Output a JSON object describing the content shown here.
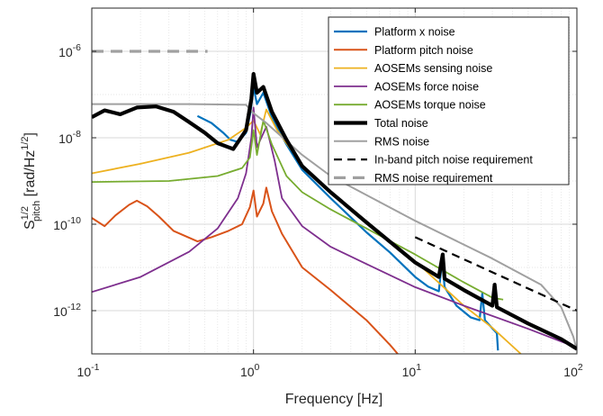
{
  "chart_data": {
    "type": "line",
    "x_scale": "log",
    "y_scale": "log",
    "xlim": [
      0.1,
      100
    ],
    "ylim": [
      1e-13,
      1e-05
    ],
    "grid": true,
    "minor_grid": true,
    "legend_position": "top-right",
    "xlabel": "Frequency [Hz]",
    "ylabel": {
      "base": "S",
      "sup": "1/2",
      "sub": "pitch",
      "unit_open": " [rad/Hz",
      "unit_sup": "1/2",
      "unit_close": "]"
    },
    "x_ticks": [
      {
        "value": 0.1,
        "mant": "10",
        "exp": "-1"
      },
      {
        "value": 1,
        "mant": "10",
        "exp": "0"
      },
      {
        "value": 10,
        "mant": "10",
        "exp": "1"
      },
      {
        "value": 100,
        "mant": "10",
        "exp": "2"
      }
    ],
    "y_ticks": [
      {
        "value": 1e-12,
        "mant": "10",
        "exp": "-12"
      },
      {
        "value": 1e-10,
        "mant": "10",
        "exp": "-10"
      },
      {
        "value": 1e-08,
        "mant": "10",
        "exp": "-8"
      },
      {
        "value": 1e-06,
        "mant": "10",
        "exp": "-6"
      }
    ],
    "series": [
      {
        "name": "Platform x noise",
        "color": "#0072BD",
        "width": 2.2,
        "dash": "",
        "points": [
          [
            0.45,
            3.2e-08
          ],
          [
            0.55,
            2.2e-08
          ],
          [
            0.65,
            1.3e-08
          ],
          [
            0.72,
            9e-09
          ],
          [
            0.8,
            8e-09
          ],
          [
            0.9,
            1.3e-08
          ],
          [
            0.96,
            4e-08
          ],
          [
            1.0,
            1.5e-07
          ],
          [
            1.05,
            6e-08
          ],
          [
            1.15,
            1.1e-07
          ],
          [
            1.3,
            3e-08
          ],
          [
            1.6,
            7e-09
          ],
          [
            2.0,
            1.8e-09
          ],
          [
            3.0,
            4e-10
          ],
          [
            5.0,
            6.5e-11
          ],
          [
            7.0,
            2.2e-11
          ],
          [
            10,
            6e-12
          ],
          [
            12,
            3.6e-12
          ],
          [
            14,
            2.8e-12
          ],
          [
            14.7,
            1.5e-11
          ],
          [
            15.2,
            3.5e-12
          ],
          [
            18,
            1.3e-12
          ],
          [
            22,
            7e-13
          ],
          [
            25,
            6e-13
          ],
          [
            26,
            2.5e-12
          ],
          [
            27,
            6e-13
          ],
          [
            32,
            3e-13
          ],
          [
            32.5,
            1.2e-13
          ]
        ]
      },
      {
        "name": "Platform pitch noise",
        "color": "#D95319",
        "width": 2.0,
        "dash": "",
        "points": [
          [
            0.1,
            1.4e-10
          ],
          [
            0.12,
            9e-11
          ],
          [
            0.14,
            1.6e-10
          ],
          [
            0.17,
            2.8e-10
          ],
          [
            0.19,
            3.5e-10
          ],
          [
            0.22,
            2.6e-10
          ],
          [
            0.26,
            1.5e-10
          ],
          [
            0.32,
            7e-11
          ],
          [
            0.45,
            4e-11
          ],
          [
            0.55,
            5e-11
          ],
          [
            0.7,
            7e-11
          ],
          [
            0.85,
            1e-10
          ],
          [
            0.95,
            2.5e-10
          ],
          [
            1.0,
            6e-10
          ],
          [
            1.05,
            1.5e-10
          ],
          [
            1.15,
            3e-10
          ],
          [
            1.2,
            7e-10
          ],
          [
            1.3,
            2e-10
          ],
          [
            1.5,
            6e-11
          ],
          [
            2.0,
            1e-11
          ],
          [
            3.0,
            3e-12
          ],
          [
            5.0,
            6e-13
          ],
          [
            7.0,
            1.6e-13
          ],
          [
            7.8,
            1e-13
          ]
        ]
      },
      {
        "name": "AOSEMs sensing noise",
        "color": "#EDB120",
        "width": 1.8,
        "dash": "",
        "points": [
          [
            0.1,
            1.5e-09
          ],
          [
            0.2,
            2.5e-09
          ],
          [
            0.4,
            4.5e-09
          ],
          [
            0.7,
            9e-09
          ],
          [
            0.9,
            1.7e-08
          ],
          [
            1.0,
            2.5e-08
          ],
          [
            1.1,
            1.2e-08
          ],
          [
            1.2,
            4.5e-08
          ],
          [
            1.4,
            1.5e-08
          ],
          [
            2.0,
            2.3e-09
          ],
          [
            3.0,
            5.5e-10
          ],
          [
            5.0,
            1.1e-10
          ],
          [
            10,
            1.4e-11
          ],
          [
            20,
            1.3e-12
          ],
          [
            30,
            4e-13
          ],
          [
            45,
            1e-13
          ]
        ]
      },
      {
        "name": "AOSEMs force noise",
        "color": "#7E2F8E",
        "width": 1.8,
        "dash": "",
        "points": [
          [
            0.1,
            2.7e-12
          ],
          [
            0.2,
            6e-12
          ],
          [
            0.4,
            2.3e-11
          ],
          [
            0.6,
            8e-11
          ],
          [
            0.8,
            4e-10
          ],
          [
            0.9,
            1.5e-09
          ],
          [
            0.97,
            1e-08
          ],
          [
            1.0,
            5e-08
          ],
          [
            1.05,
            6e-09
          ],
          [
            1.2,
            1.8e-08
          ],
          [
            1.35,
            3e-09
          ],
          [
            1.5,
            4e-10
          ],
          [
            2.0,
            9e-11
          ],
          [
            3.0,
            3e-11
          ],
          [
            5.0,
            1.2e-11
          ],
          [
            10,
            3.5e-12
          ],
          [
            20,
            1.3e-12
          ],
          [
            50,
            3.8e-13
          ],
          [
            100,
            1.4e-13
          ]
        ]
      },
      {
        "name": "AOSEMs torque noise",
        "color": "#77AC30",
        "width": 1.8,
        "dash": "",
        "points": [
          [
            0.1,
            9.5e-10
          ],
          [
            0.3,
            1e-09
          ],
          [
            0.6,
            1.3e-09
          ],
          [
            0.85,
            2e-09
          ],
          [
            0.95,
            3.5e-09
          ],
          [
            1.0,
            1.5e-08
          ],
          [
            1.05,
            4e-09
          ],
          [
            1.15,
            2.5e-08
          ],
          [
            1.3,
            7e-09
          ],
          [
            1.6,
            1.3e-09
          ],
          [
            2.0,
            5.5e-10
          ],
          [
            3.0,
            2.2e-10
          ],
          [
            5.0,
            8e-11
          ],
          [
            10,
            2e-11
          ],
          [
            20,
            4.5e-12
          ],
          [
            30,
            2e-12
          ],
          [
            35,
            1.8e-12
          ]
        ]
      },
      {
        "name": "Total noise",
        "color": "#000000",
        "width": 4.2,
        "dash": "",
        "points": [
          [
            0.1,
            3e-08
          ],
          [
            0.12,
            4.3e-08
          ],
          [
            0.15,
            3.5e-08
          ],
          [
            0.19,
            5e-08
          ],
          [
            0.25,
            5.3e-08
          ],
          [
            0.32,
            4e-08
          ],
          [
            0.4,
            2.3e-08
          ],
          [
            0.5,
            1.3e-08
          ],
          [
            0.6,
            7.5e-09
          ],
          [
            0.75,
            5.5e-09
          ],
          [
            0.9,
            1.5e-08
          ],
          [
            0.97,
            8e-08
          ],
          [
            1.0,
            3e-07
          ],
          [
            1.05,
            1.1e-07
          ],
          [
            1.15,
            1.5e-07
          ],
          [
            1.3,
            4e-08
          ],
          [
            1.6,
            9e-09
          ],
          [
            2.0,
            2.2e-09
          ],
          [
            3.0,
            5.5e-10
          ],
          [
            5.0,
            1.1e-10
          ],
          [
            10,
            1.3e-11
          ],
          [
            14,
            6e-12
          ],
          [
            14.8,
            2e-11
          ],
          [
            15.2,
            5.5e-12
          ],
          [
            20,
            3e-12
          ],
          [
            30,
            1.3e-12
          ],
          [
            31,
            4e-12
          ],
          [
            32,
            1.2e-12
          ],
          [
            50,
            5e-13
          ],
          [
            80,
            2.2e-13
          ],
          [
            100,
            1.3e-13
          ]
        ]
      },
      {
        "name": "RMS noise",
        "color": "#A0A0A0",
        "width": 2.0,
        "dash": "",
        "points": [
          [
            0.1,
            6e-08
          ],
          [
            0.4,
            6e-08
          ],
          [
            0.9,
            5.8e-08
          ],
          [
            1.0,
            3.7e-08
          ],
          [
            1.2,
            2.2e-08
          ],
          [
            2.0,
            4e-09
          ],
          [
            3.0,
            1.3e-09
          ],
          [
            10,
            1.2e-10
          ],
          [
            30,
            1.6e-11
          ],
          [
            60,
            4e-12
          ],
          [
            80,
            1.2e-12
          ],
          [
            95,
            2.5e-13
          ],
          [
            100,
            1.2e-13
          ]
        ]
      },
      {
        "name": "In-band pitch noise requirement",
        "color": "#000000",
        "width": 2.2,
        "dash": "9,6",
        "points": [
          [
            10,
            5e-11
          ],
          [
            100,
            1e-12
          ]
        ]
      },
      {
        "name": "RMS noise requirement",
        "color": "#A0A0A0",
        "width": 3.2,
        "dash": "13,8",
        "points": [
          [
            0.1,
            1e-06
          ],
          [
            0.52,
            1e-06
          ]
        ]
      }
    ]
  }
}
